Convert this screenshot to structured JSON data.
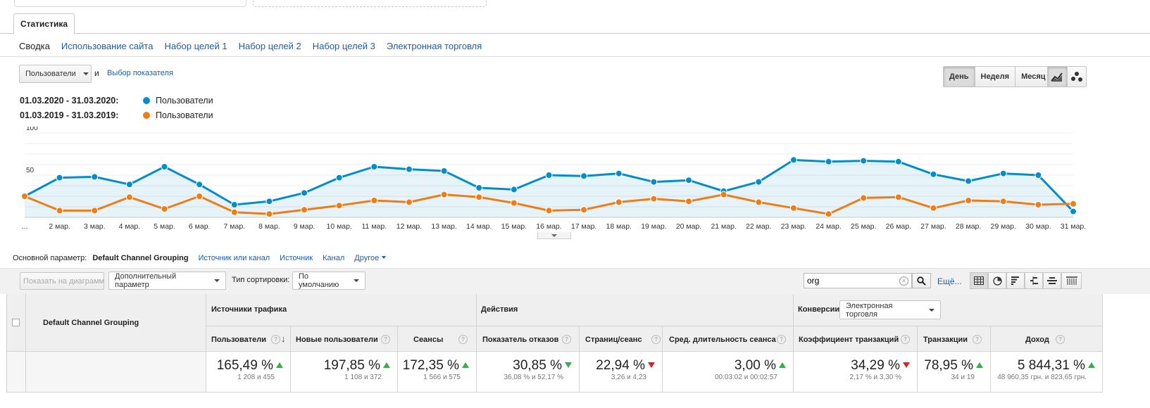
{
  "tab": {
    "label": "Статистика"
  },
  "subtabs": [
    {
      "label": "Сводка",
      "active": true
    },
    {
      "label": "Использование сайта",
      "active": false
    },
    {
      "label": "Набор целей 1",
      "active": false
    },
    {
      "label": "Набор целей 2",
      "active": false
    },
    {
      "label": "Набор целей 3",
      "active": false
    },
    {
      "label": "Электронная торговля",
      "active": false
    }
  ],
  "controls": {
    "metric_select": "Пользователи",
    "and": "и",
    "choose_metric": "Выбор показателя",
    "periods": [
      "День",
      "Неделя",
      "Месяц"
    ],
    "active_period": "День"
  },
  "legend": [
    {
      "range": "01.03.2020 - 31.03.2020:",
      "label": "Пользователи",
      "color": "#058dc7"
    },
    {
      "range": "01.03.2019 - 31.03.2019:",
      "label": "Пользователи",
      "color": "#ed7e17"
    }
  ],
  "chart_data": {
    "type": "line",
    "y_ticks": [
      "100",
      "50"
    ],
    "ylim": [
      0,
      100
    ],
    "x_labels": [
      "...",
      "2 мар.",
      "3 мар.",
      "4 мар.",
      "5 мар.",
      "6 мар.",
      "7 мар.",
      "8 мар.",
      "9 мар.",
      "10 мар.",
      "11 мар.",
      "12 мар.",
      "13 мар.",
      "14 мар.",
      "15 мар.",
      "16 мар.",
      "17 мар.",
      "18 мар.",
      "19 мар.",
      "20 мар.",
      "21 мар.",
      "22 мар.",
      "23 мар.",
      "24 мар.",
      "25 мар.",
      "26 мар.",
      "27 мар.",
      "28 мар.",
      "29 мар.",
      "30 мар.",
      "31 мар."
    ],
    "series": [
      {
        "name": "Пользователи",
        "color": "#058dc7",
        "area": true,
        "values": [
          25,
          47,
          48,
          39,
          60,
          39,
          15,
          19,
          29,
          47,
          60,
          57,
          55,
          35,
          33,
          50,
          49,
          52,
          42,
          44,
          31,
          42,
          68,
          66,
          67,
          66,
          51,
          43,
          52,
          50,
          7
        ]
      },
      {
        "name": "Пользователи",
        "color": "#ed7e17",
        "area": false,
        "values": [
          25,
          8,
          8,
          24,
          10,
          25,
          6,
          4,
          9,
          14,
          20,
          18,
          27,
          24,
          17,
          8,
          9,
          18,
          22,
          19,
          27,
          18,
          11,
          4,
          23,
          24,
          11,
          20,
          19,
          15,
          16
        ]
      }
    ]
  },
  "dimensions": {
    "label": "Основной параметр:",
    "active": "Default Channel Grouping",
    "links": [
      "Источник или канал",
      "Источник",
      "Канал",
      "Другое"
    ]
  },
  "toolbar": {
    "plot_rows": "Показать на диаграмме",
    "secondary": "Дополнительный параметр",
    "sort_label": "Тип сортировки:",
    "sort_value": "По умолчанию",
    "search_value": "org",
    "more": "Ещё..."
  },
  "table": {
    "dimension_header": "Default Channel Grouping",
    "groups": {
      "acquisition": "Источники трафика",
      "behavior": "Действия",
      "conversions": "Конверсии",
      "conv_select": "Электронная торговля"
    },
    "columns": [
      {
        "label": "Пользователи",
        "value": "165,49 %",
        "trend": "up",
        "sub": "1 208 и 455"
      },
      {
        "label": "Новые пользователи",
        "value": "197,85 %",
        "trend": "up",
        "sub": "1 108 и 372"
      },
      {
        "label": "Сеансы",
        "value": "172,35 %",
        "trend": "up",
        "sub": "1 566 и 575"
      },
      {
        "label": "Показатель отказов",
        "value": "30,85 %",
        "trend": "down-good",
        "sub": "36,08 % и 52,17 %"
      },
      {
        "label": "Страниц/сеанс",
        "value": "22,94 %",
        "trend": "down",
        "sub": "3,26 и 4,23"
      },
      {
        "label": "Сред. длительность сеанса",
        "value": "3,00 %",
        "trend": "up",
        "sub": "00:03:02 и 00:02:57"
      },
      {
        "label": "Коэффициент транзакций",
        "value": "34,29 %",
        "trend": "down",
        "sub": "2,17 % и 3,30 %"
      },
      {
        "label": "Транзакции",
        "value": "78,95 %",
        "trend": "up",
        "sub": "34 и 19"
      },
      {
        "label": "Доход",
        "value": "5 844,31 %",
        "trend": "up",
        "sub": "48 960,35 грн. и 823,65 грн."
      }
    ]
  }
}
